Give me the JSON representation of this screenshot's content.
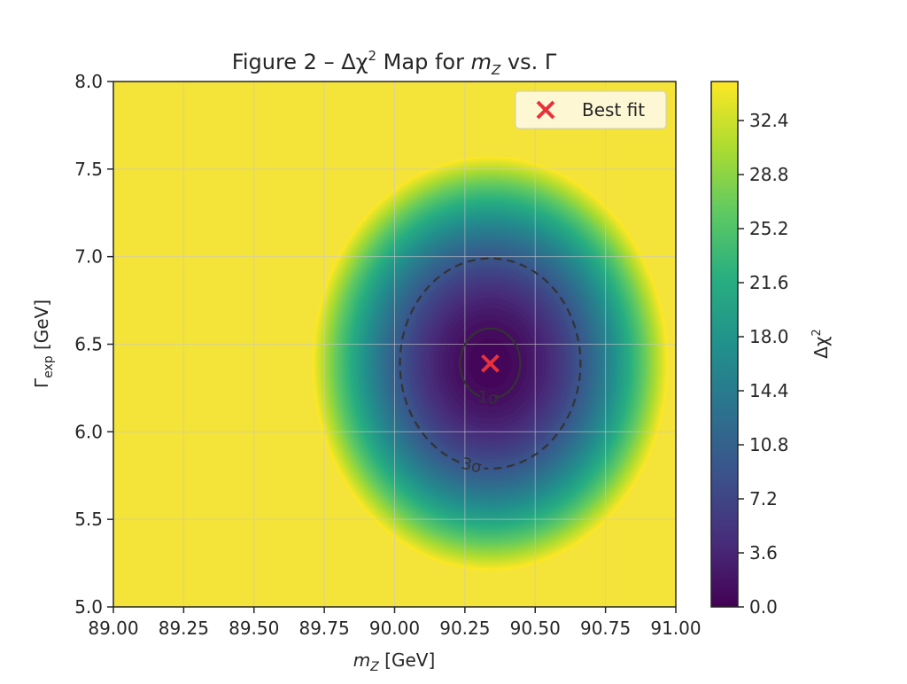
{
  "chart_data": {
    "type": "heatmap",
    "title_main": "Figure 2 – Δχ",
    "title_sup": "2",
    "title_mid": " Map for ",
    "title_var": "m",
    "title_sub": "Z",
    "title_end": " vs. Γ",
    "xlabel_var": "m",
    "xlabel_sub": "Z",
    "xlabel_unit": "  [GeV]",
    "ylabel_var": "Γ",
    "ylabel_sub": "exp",
    "ylabel_unit": "  [GeV]",
    "xlim": [
      89.0,
      91.0
    ],
    "ylim": [
      5.0,
      8.0
    ],
    "x_ticks": [
      89.0,
      89.25,
      89.5,
      89.75,
      90.0,
      90.25,
      90.5,
      90.75,
      91.0
    ],
    "x_tick_labels": [
      "89.00",
      "89.25",
      "89.50",
      "89.75",
      "90.00",
      "90.25",
      "90.50",
      "90.75",
      "91.00"
    ],
    "y_ticks": [
      5.0,
      5.5,
      6.0,
      6.5,
      7.0,
      7.5,
      8.0
    ],
    "y_tick_labels": [
      "5.0",
      "5.5",
      "6.0",
      "6.5",
      "7.0",
      "7.5",
      "8.0"
    ],
    "grid": true,
    "colormap": "viridis",
    "colorbar": {
      "label_main": "Δχ",
      "label_sup": "2",
      "range": [
        0.0,
        35.0
      ],
      "ticks": [
        0.0,
        3.6,
        7.2,
        10.8,
        14.4,
        18.0,
        21.6,
        25.2,
        28.8,
        32.4
      ],
      "tick_labels": [
        "0.0",
        "3.6",
        "7.2",
        "10.8",
        "14.4",
        "18.0",
        "21.6",
        "25.2",
        "28.8",
        "32.4"
      ]
    },
    "best_fit": {
      "x": 90.34,
      "y": 6.39,
      "label": "Best fit",
      "color": "#e8313a"
    },
    "sigma_x": 0.107,
    "sigma_y": 0.2,
    "contours": [
      {
        "level": 1,
        "label": "1σ",
        "style": "solid"
      },
      {
        "level": 3,
        "label": "3σ",
        "style": "dashed"
      }
    ],
    "legend_placement": "top-right",
    "saturated_color": "#f4e339"
  }
}
